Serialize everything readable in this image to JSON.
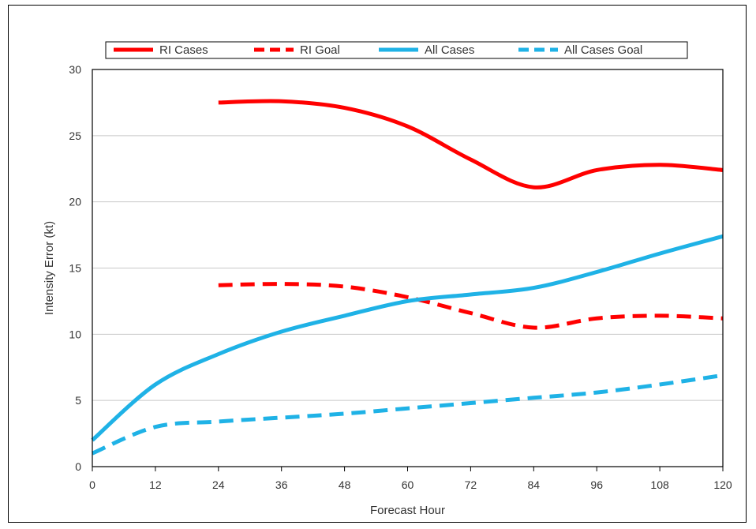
{
  "chart_data": {
    "type": "line",
    "title": "",
    "xlabel": "Forecast Hour",
    "ylabel": "Intensity Error (kt)",
    "x": [
      0,
      12,
      24,
      36,
      48,
      60,
      72,
      84,
      96,
      108,
      120
    ],
    "xlim": [
      0,
      120
    ],
    "ylim": [
      0,
      30
    ],
    "xticks": [
      "0",
      "12",
      "24",
      "36",
      "48",
      "60",
      "72",
      "84",
      "96",
      "108",
      "120"
    ],
    "yticks": [
      "0",
      "5",
      "10",
      "15",
      "20",
      "25",
      "30"
    ],
    "grid": "horizontal",
    "legend_position": "top",
    "series": [
      {
        "name": "RI Cases",
        "color": "#ff0000",
        "dash": "solid",
        "values": [
          null,
          null,
          27.5,
          27.6,
          27.1,
          25.7,
          23.2,
          21.1,
          22.4,
          22.8,
          22.4
        ]
      },
      {
        "name": "RI Goal",
        "color": "#ff0000",
        "dash": "dashed",
        "values": [
          null,
          null,
          13.7,
          13.8,
          13.6,
          12.8,
          11.6,
          10.5,
          11.2,
          11.4,
          11.2
        ]
      },
      {
        "name": "All Cases",
        "color": "#1fb2e6",
        "dash": "solid",
        "values": [
          2.0,
          6.2,
          8.5,
          10.2,
          11.4,
          12.5,
          13.0,
          13.5,
          14.7,
          16.1,
          17.4
        ]
      },
      {
        "name": "All Cases Goal",
        "color": "#1fb2e6",
        "dash": "dashed",
        "values": [
          1.0,
          3.0,
          3.4,
          3.7,
          4.0,
          4.4,
          4.8,
          5.2,
          5.6,
          6.2,
          6.9
        ]
      }
    ]
  }
}
